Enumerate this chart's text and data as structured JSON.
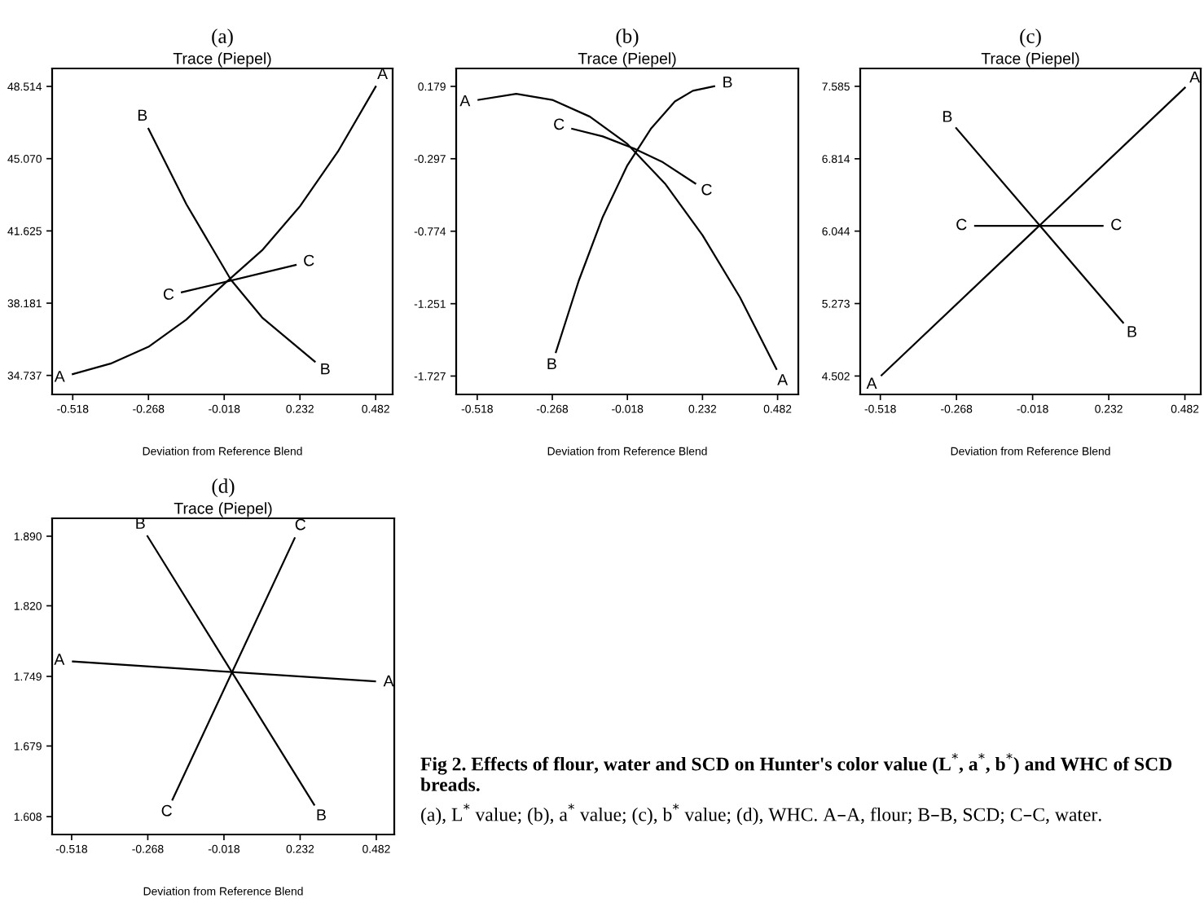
{
  "chart_data": [
    {
      "type": "line",
      "title": "(a)",
      "subtitle": "Trace (Piepel)",
      "xlabel": "Deviation from Reference Blend",
      "grid": false,
      "xlim": [
        -0.586,
        0.538
      ],
      "xticks": [
        -0.518,
        -0.268,
        -0.018,
        0.232,
        0.482
      ],
      "ylim": [
        33.83,
        49.37
      ],
      "yticks": [
        34.737,
        38.181,
        41.625,
        {
          "value": 45.07,
          "label": "45.070"
        },
        48.514
      ],
      "series": [
        {
          "name": "A",
          "color": "#000000",
          "x": [
            -0.518,
            -0.393,
            -0.268,
            -0.143,
            -0.018,
            0.107,
            0.232,
            0.357,
            0.482
          ],
          "values": [
            34.8,
            35.3,
            36.1,
            37.4,
            39.1,
            40.7,
            42.8,
            45.4,
            48.5
          ]
        },
        {
          "name": "B",
          "color": "#000000",
          "x": [
            -0.268,
            -0.143,
            0.004,
            0.107,
            0.281
          ],
          "values": [
            46.5,
            42.9,
            39.3,
            37.5,
            35.4
          ]
        },
        {
          "name": "C",
          "color": "#000000",
          "x": [
            -0.158,
            0.218
          ],
          "values": [
            38.7,
            40.0
          ]
        }
      ]
    },
    {
      "type": "line",
      "title": "(b)",
      "subtitle": "Trace (Piepel)",
      "xlabel": "Deviation from Reference Blend",
      "grid": false,
      "xlim": [
        -0.588,
        0.551
      ],
      "xticks": [
        -0.518,
        -0.268,
        -0.018,
        0.232,
        0.482
      ],
      "ylim": [
        -1.848,
        0.297
      ],
      "yticks": [
        -1.727,
        -1.251,
        -0.774,
        -0.297,
        0.179
      ],
      "series": [
        {
          "name": "A",
          "color": "#000000",
          "x": [
            -0.514,
            -0.388,
            -0.268,
            -0.143,
            -0.018,
            0.107,
            0.232,
            0.357,
            0.478
          ],
          "values": [
            0.09,
            0.13,
            0.09,
            -0.02,
            -0.2,
            -0.46,
            -0.8,
            -1.21,
            -1.68
          ]
        },
        {
          "name": "B",
          "color": "#000000",
          "x": [
            -0.256,
            -0.18,
            -0.1,
            -0.018,
            0.06,
            0.14,
            0.2,
            0.271
          ],
          "values": [
            -1.57,
            -1.1,
            -0.68,
            -0.34,
            -0.1,
            0.08,
            0.15,
            0.18
          ]
        },
        {
          "name": "C",
          "color": "#000000",
          "x": [
            -0.202,
            -0.1,
            0.004,
            0.1,
            0.208
          ],
          "values": [
            -0.1,
            -0.15,
            -0.23,
            -0.32,
            -0.46
          ]
        }
      ]
    },
    {
      "type": "line",
      "title": "(c)",
      "subtitle": "Trace (Piepel)",
      "xlabel": "Deviation from Reference Blend",
      "grid": false,
      "xlim": [
        -0.584,
        0.534
      ],
      "xticks": [
        -0.518,
        -0.268,
        -0.018,
        0.232,
        0.482
      ],
      "ylim": [
        4.306,
        7.775
      ],
      "yticks": [
        4.502,
        5.273,
        6.044,
        6.814,
        7.585
      ],
      "series": [
        {
          "name": "A",
          "color": "#000000",
          "x": [
            -0.514,
            0.482
          ],
          "values": [
            4.51,
            7.57
          ]
        },
        {
          "name": "B",
          "color": "#000000",
          "x": [
            -0.269,
            0.279
          ],
          "values": [
            7.14,
            5.07
          ]
        },
        {
          "name": "C",
          "color": "#000000",
          "x": [
            -0.207,
            0.212
          ],
          "values": [
            6.1,
            6.1
          ]
        }
      ]
    },
    {
      "type": "line",
      "title": "(d)",
      "subtitle": "Trace (Piepel)",
      "xlabel": "Deviation from Reference Blend",
      "grid": false,
      "xlim": [
        -0.582,
        0.541
      ],
      "xticks": [
        -0.518,
        -0.268,
        -0.018,
        0.232,
        0.482
      ],
      "ylim": [
        1.59,
        1.908
      ],
      "yticks": [
        1.608,
        1.679,
        1.749,
        {
          "value": 1.82,
          "label": "1.820"
        },
        {
          "value": 1.89,
          "label": "1.890"
        }
      ],
      "series": [
        {
          "name": "A",
          "color": "#000000",
          "x": [
            -0.514,
            0.478
          ],
          "values": [
            1.764,
            1.744
          ]
        },
        {
          "name": "B",
          "color": "#000000",
          "x": [
            -0.269,
            0.278
          ],
          "values": [
            1.89,
            1.62
          ]
        },
        {
          "name": "C",
          "color": "#000000",
          "x": [
            -0.187,
            0.214
          ],
          "values": [
            1.625,
            1.888
          ]
        }
      ],
      "annotations": [
        "Fig 2. Effects of flour, water and SCD on Hunter's color value (L$^{*}$, a$^{*}$, b$^{*}$) and WHC of SCD breads.",
        "(a), L$^{*}$ value; (b), a$^{*}$ value; (c), b$^{*}$ value; (d), WHC. A–A, flour; B–B, SCD; C–C, water."
      ]
    }
  ]
}
